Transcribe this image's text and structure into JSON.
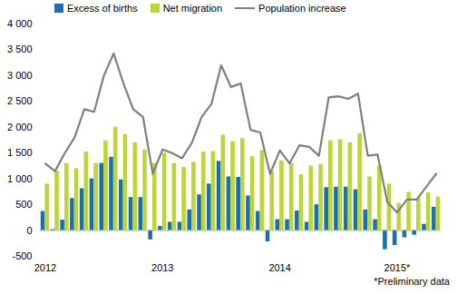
{
  "chart_data": {
    "type": "bar",
    "categories": [
      "2012",
      null,
      null,
      null,
      null,
      null,
      null,
      null,
      null,
      null,
      null,
      null,
      "2013",
      null,
      null,
      null,
      null,
      null,
      null,
      null,
      null,
      null,
      null,
      null,
      "2014",
      null,
      null,
      null,
      null,
      null,
      null,
      null,
      null,
      null,
      null,
      null,
      "2015*",
      null,
      null,
      null,
      null
    ],
    "series": [
      {
        "name": "Excess of births",
        "type": "bar",
        "color": "#1b6fae",
        "values": [
          370,
          20,
          200,
          620,
          810,
          1000,
          1300,
          1420,
          980,
          640,
          640,
          -180,
          80,
          160,
          160,
          400,
          690,
          900,
          1340,
          1040,
          1030,
          670,
          370,
          -220,
          210,
          210,
          380,
          160,
          500,
          830,
          840,
          840,
          790,
          400,
          210,
          -370,
          -290,
          -140,
          -90,
          120,
          450
        ]
      },
      {
        "name": "Net migration",
        "type": "bar",
        "color": "#bcd636",
        "values": [
          900,
          1150,
          1300,
          1200,
          1520,
          1300,
          1740,
          2000,
          1860,
          1700,
          1560,
          1300,
          1500,
          1300,
          1220,
          1320,
          1520,
          1530,
          1850,
          1720,
          1780,
          1430,
          1550,
          1150,
          1350,
          1300,
          1080,
          1250,
          1280,
          1740,
          1760,
          1700,
          1880,
          1040,
          1250,
          900,
          530,
          740,
          620,
          730,
          650
        ]
      },
      {
        "name": "Population increase",
        "type": "line",
        "color": "#7f7f7f",
        "values": [
          1300,
          1150,
          1500,
          1800,
          2350,
          2300,
          3000,
          3430,
          2850,
          2350,
          2200,
          1100,
          1570,
          1500,
          1400,
          1700,
          2200,
          2450,
          3200,
          2780,
          2850,
          1950,
          1900,
          1100,
          1550,
          1300,
          1650,
          1620,
          1450,
          2580,
          2600,
          2550,
          2650,
          1450,
          1470,
          550,
          350,
          600,
          600,
          850,
          1100
        ]
      }
    ],
    "ylim": [
      -500,
      4000
    ],
    "yticks": [
      -500,
      0,
      500,
      {
        "value": 1000,
        "label": "1 000"
      },
      {
        "value": 1500,
        "label": "1 500"
      },
      {
        "value": 2000,
        "label": "2 000"
      },
      {
        "value": 2500,
        "label": "2 500"
      },
      {
        "value": 3000,
        "label": "3 000"
      },
      {
        "value": 3500,
        "label": "3 500"
      },
      {
        "value": 4000,
        "label": "4 000"
      }
    ],
    "grid": false,
    "legend": "top-left",
    "note": "*Preliminary data"
  }
}
